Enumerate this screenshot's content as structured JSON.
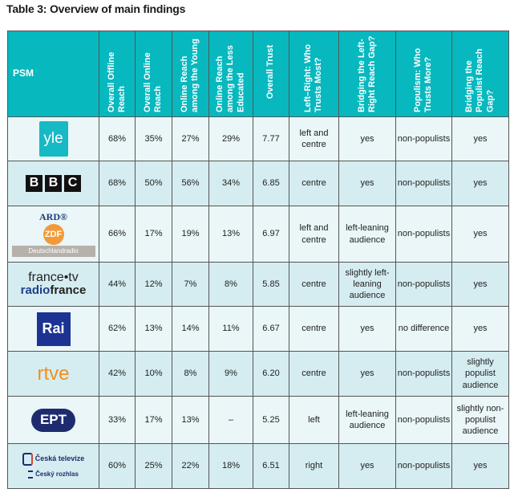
{
  "title": "Table 3: Overview of main findings",
  "headers": [
    "PSM",
    "Overall Offline Reach",
    "Overall Online Reach",
    "Online Reach among the Young",
    "Online Reach among the Less Educated",
    "Overall Trust",
    "Left–Right: Who Trusts Most?",
    "Bridging the Left-Right Reach Gap?",
    "Populism: Who Trusts More?",
    "Bridging the Populist Reach Gap?"
  ],
  "rows": [
    {
      "logo": "yle",
      "logo_text": [
        "yle"
      ],
      "cells": [
        "68%",
        "35%",
        "27%",
        "29%",
        "7.77",
        "left and centre",
        "yes",
        "non-populists",
        "yes"
      ]
    },
    {
      "logo": "bbc",
      "logo_text": [
        "B",
        "B",
        "C"
      ],
      "cells": [
        "68%",
        "50%",
        "56%",
        "34%",
        "6.85",
        "centre",
        "yes",
        "non-populists",
        "yes"
      ]
    },
    {
      "logo": "ard",
      "logo_text": [
        "ARD®",
        "ZDF",
        "Deutschlandradio"
      ],
      "cells": [
        "66%",
        "17%",
        "19%",
        "13%",
        "6.97",
        "left and centre",
        "left-leaning audience",
        "non-populists",
        "yes"
      ]
    },
    {
      "logo": "ftv",
      "logo_text": [
        "france•tv",
        "radio",
        "france"
      ],
      "cells": [
        "44%",
        "12%",
        "7%",
        "8%",
        "5.85",
        "centre",
        "slightly left-leaning audience",
        "non-populists",
        "yes"
      ]
    },
    {
      "logo": "rai",
      "logo_text": [
        "Rai"
      ],
      "cells": [
        "62%",
        "13%",
        "14%",
        "11%",
        "6.67",
        "centre",
        "yes",
        "no difference",
        "yes"
      ]
    },
    {
      "logo": "rtve",
      "logo_text": [
        "rtve"
      ],
      "cells": [
        "42%",
        "10%",
        "8%",
        "9%",
        "6.20",
        "centre",
        "yes",
        "non-populists",
        "slightly populist audience"
      ]
    },
    {
      "logo": "ept",
      "logo_text": [
        "EPT"
      ],
      "cells": [
        "33%",
        "17%",
        "13%",
        "–",
        "5.25",
        "left",
        "left-leaning audience",
        "non-populists",
        "slightly non-populist audience"
      ]
    },
    {
      "logo": "ct",
      "logo_text": [
        "Česká televize",
        "Český rozhlas"
      ],
      "cells": [
        "60%",
        "25%",
        "22%",
        "18%",
        "6.51",
        "right",
        "yes",
        "non-populists",
        "yes"
      ]
    }
  ]
}
